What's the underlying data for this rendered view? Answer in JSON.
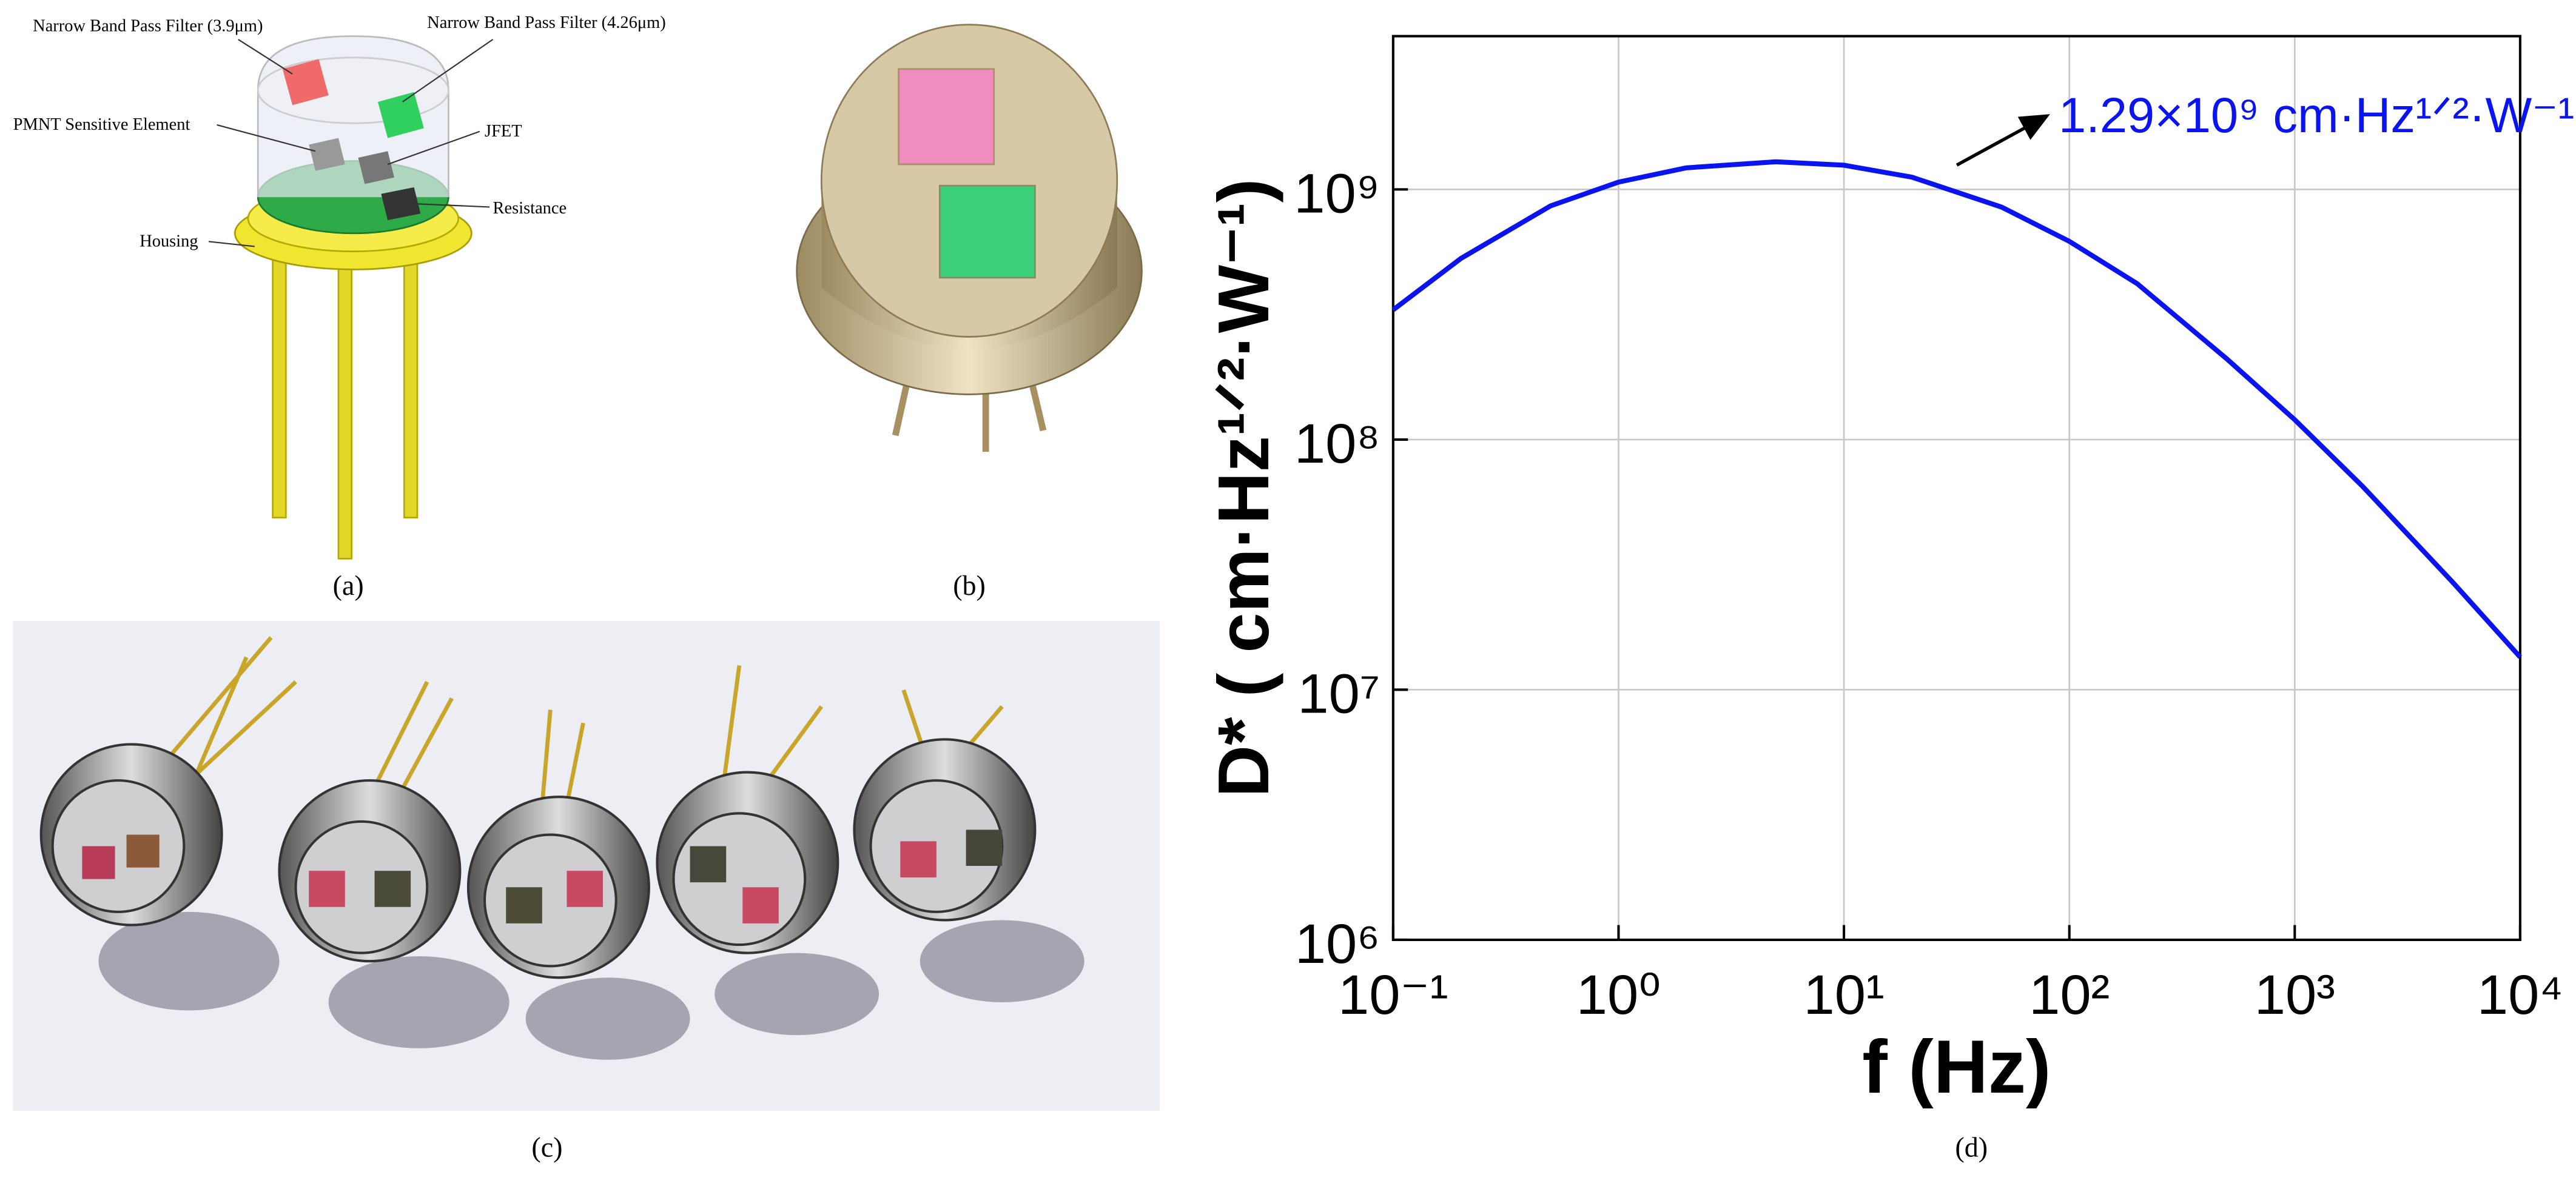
{
  "panels": {
    "a": {
      "label": "(a)",
      "callouts": [
        "Narrow Band Pass Filter (3.9μm)",
        "Narrow Band Pass Filter (4.26μm)",
        "PMNT Sensitive Element",
        "JFET",
        "Resistance",
        "Housing"
      ]
    },
    "b": {
      "label": "(b)"
    },
    "c": {
      "label": "(c)"
    },
    "d": {
      "label": "(d)"
    }
  },
  "chart_data": {
    "type": "line",
    "xlabel": "f (Hz)",
    "ylabel": "D* ( cm·Hz¹ᐟ²·W⁻¹)",
    "annotation": "1.29×10⁹ cm·Hz¹ᐟ²·W⁻¹",
    "x": [
      0.1,
      0.2,
      0.5,
      1,
      2,
      5,
      10,
      20,
      50,
      100,
      200,
      500,
      1000,
      2000,
      5000,
      10000
    ],
    "values": [
      330000000,
      530000000,
      860000000,
      1070000000,
      1220000000,
      1290000000,
      1250000000,
      1120000000,
      850000000,
      620000000,
      420000000,
      210000000,
      120000000,
      65000000,
      27000000,
      13500000
    ],
    "color": "#0a14f0",
    "xscale": "log",
    "yscale": "log",
    "xlim": [
      0.1,
      10000
    ],
    "ylim": [
      1000000,
      4100000000
    ],
    "xticks": [
      {
        "value": 0.1,
        "label": "10⁻¹"
      },
      {
        "value": 1,
        "label": "10⁰"
      },
      {
        "value": 10,
        "label": "10¹"
      },
      {
        "value": 100,
        "label": "10²"
      },
      {
        "value": 1000,
        "label": "10³"
      },
      {
        "value": 10000,
        "label": "10⁴"
      }
    ],
    "yticks": [
      {
        "value": 1000000,
        "label": "10⁶"
      },
      {
        "value": 10000000,
        "label": "10⁷"
      },
      {
        "value": 100000000,
        "label": "10⁸"
      },
      {
        "value": 1000000000,
        "label": "10⁹"
      }
    ],
    "grid": true
  }
}
